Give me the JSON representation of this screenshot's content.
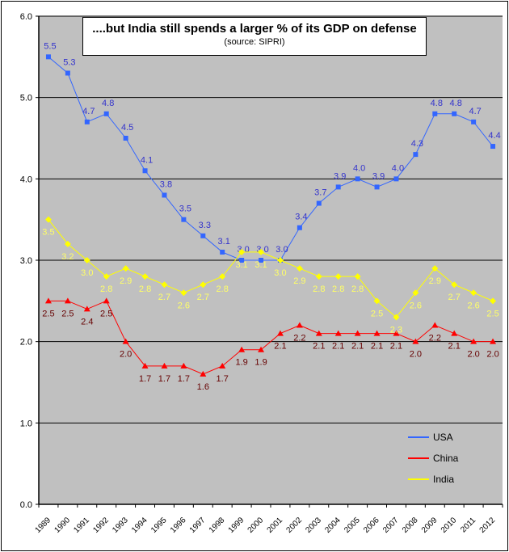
{
  "chart_data": {
    "type": "line",
    "title": "....but India still spends a larger % of its GDP on defense",
    "subtitle": "(source: SIPRI)",
    "xlabel": "",
    "ylabel": "",
    "ylim": [
      0,
      6
    ],
    "yticks": [
      "0.0",
      "1.0",
      "2.0",
      "3.0",
      "4.0",
      "5.0",
      "6.0"
    ],
    "grid": true,
    "legend": "bottom-right",
    "categories": [
      "1989",
      "1990",
      "1991",
      "1992",
      "1993",
      "1994",
      "1995",
      "1996",
      "1997",
      "1998",
      "1999",
      "2000",
      "2001",
      "2002",
      "2003",
      "2004",
      "2005",
      "2006",
      "2007",
      "2008",
      "2009",
      "2010",
      "2011",
      "2012"
    ],
    "series": [
      {
        "name": "USA",
        "color": "#3366ff",
        "label_color": "#3333cc",
        "marker": "square",
        "values": [
          5.5,
          5.3,
          4.7,
          4.8,
          4.5,
          4.1,
          3.8,
          3.5,
          3.3,
          3.1,
          3.0,
          3.0,
          3.0,
          3.4,
          3.7,
          3.9,
          4.0,
          3.9,
          4.0,
          4.3,
          4.8,
          4.8,
          4.7,
          4.4
        ]
      },
      {
        "name": "China",
        "color": "#ff0000",
        "label_color": "#660000",
        "marker": "triangle",
        "values": [
          2.5,
          2.5,
          2.4,
          2.5,
          2.0,
          1.7,
          1.7,
          1.7,
          1.6,
          1.7,
          1.9,
          1.9,
          2.1,
          2.2,
          2.1,
          2.1,
          2.1,
          2.1,
          2.1,
          2.0,
          2.2,
          2.1,
          2.0,
          2.0
        ]
      },
      {
        "name": "India",
        "color": "#ffff00",
        "label_color": "#ffff66",
        "marker": "diamond",
        "values": [
          3.5,
          3.2,
          3.0,
          2.8,
          2.9,
          2.8,
          2.7,
          2.6,
          2.7,
          2.8,
          3.1,
          3.1,
          3.0,
          2.9,
          2.8,
          2.8,
          2.8,
          2.5,
          2.3,
          2.6,
          2.9,
          2.7,
          2.6,
          2.5
        ]
      }
    ],
    "colors": {
      "plot_background": "#c0c0c0",
      "gridline": "#000000"
    }
  }
}
